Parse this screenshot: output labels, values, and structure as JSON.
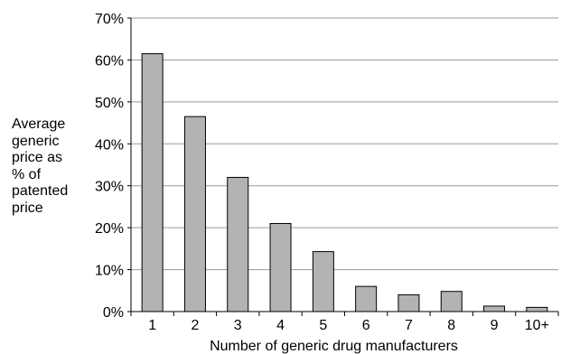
{
  "chart_data": {
    "type": "bar",
    "title": "",
    "xlabel": "Number of generic drug manufacturers",
    "ylabel": "Average generic price as % of patented price",
    "ylabel_lines": [
      "Average",
      "generic",
      "price as",
      "% of",
      "patented",
      "price"
    ],
    "categories": [
      "1",
      "2",
      "3",
      "4",
      "5",
      "6",
      "7",
      "8",
      "9",
      "10+"
    ],
    "values": [
      61.5,
      46.5,
      32,
      21,
      14.3,
      6,
      4,
      4.8,
      1.3,
      1
    ],
    "ylim": [
      0,
      70
    ],
    "yticks": [
      0,
      10,
      20,
      30,
      40,
      50,
      60,
      70
    ],
    "ytick_labels": [
      "0%",
      "10%",
      "20%",
      "30%",
      "40%",
      "50%",
      "60%",
      "70%"
    ],
    "grid": true,
    "legend": "none",
    "colors": {
      "bar_fill": "#b3b3b3",
      "bar_stroke": "#000000",
      "grid": "#9a9a9a",
      "axis": "#000000"
    }
  }
}
